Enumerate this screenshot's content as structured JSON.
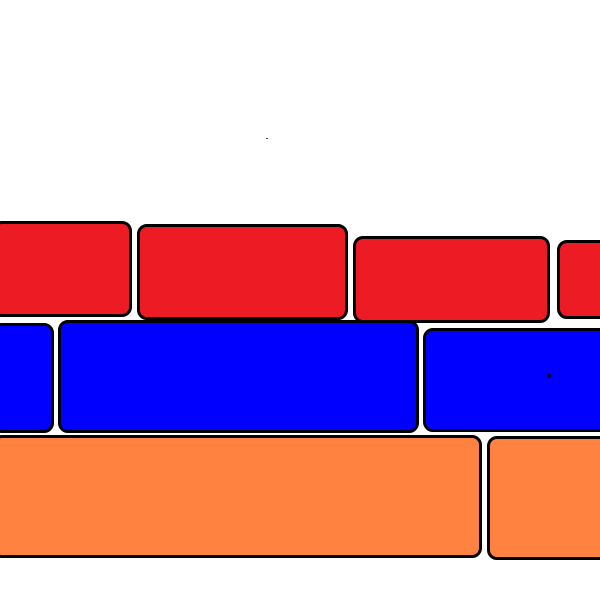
{
  "colors": {
    "red": "#ED1C24",
    "blue": "#0000FF",
    "orange": "#FF8241",
    "outline": "#000000",
    "background": "#FFFFFF"
  },
  "rows": [
    {
      "name": "red-row",
      "color": "red",
      "bricks": 4
    },
    {
      "name": "blue-row",
      "color": "blue",
      "bricks": 3
    },
    {
      "name": "orange-row",
      "color": "orange",
      "bricks": 2
    }
  ]
}
